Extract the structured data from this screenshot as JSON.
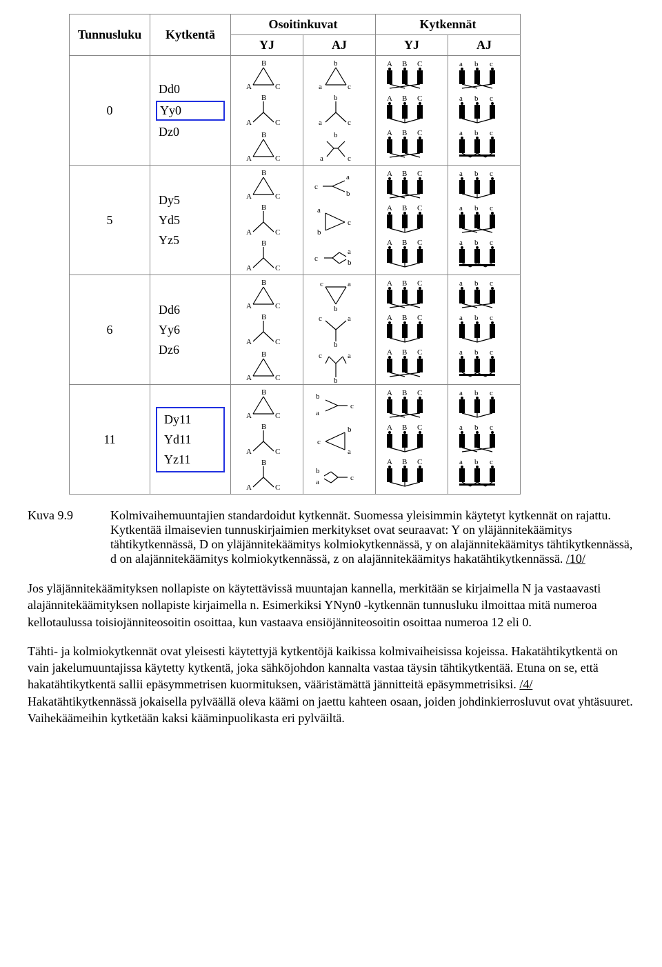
{
  "table": {
    "headers": {
      "tunnusluku": "Tunnusluku",
      "kytkenta": "Kytkentä",
      "osoitinkuvat": "Osoitinkuvat",
      "kytkennat": "Kytkennät",
      "yj": "YJ",
      "aj": "AJ"
    },
    "groups": [
      {
        "tunnus": "0",
        "rows": [
          "Dd0",
          "Yy0",
          "Dz0"
        ],
        "highlight": "single",
        "highlight_index": 1,
        "yj_shapes": [
          "tri",
          "wye",
          "tri"
        ],
        "aj_shapes": [
          "tri",
          "wye",
          "zig"
        ],
        "yj_labels_upper": true,
        "aj_labels_upper": false,
        "conn_yj": [
          "delta",
          "wye",
          "delta"
        ],
        "conn_aj": [
          "delta",
          "wye",
          "zig"
        ]
      },
      {
        "tunnus": "5",
        "rows": [
          "Dy5",
          "Yd5",
          "Yz5"
        ],
        "highlight": "none",
        "yj_shapes": [
          "tri",
          "wye",
          "wye"
        ],
        "aj_shapes": [
          "wyeR",
          "triR",
          "zigR"
        ],
        "conn_yj": [
          "delta",
          "wye",
          "wye"
        ],
        "conn_aj": [
          "wye",
          "delta",
          "zig"
        ]
      },
      {
        "tunnus": "6",
        "rows": [
          "Dd6",
          "Yy6",
          "Dz6"
        ],
        "highlight": "none",
        "yj_shapes": [
          "tri",
          "wye",
          "tri"
        ],
        "aj_shapes": [
          "triD",
          "wyeD",
          "zigD"
        ],
        "conn_yj": [
          "delta",
          "wye",
          "delta"
        ],
        "conn_aj": [
          "delta",
          "wye",
          "zig"
        ]
      },
      {
        "tunnus": "11",
        "rows": [
          "Dy11",
          "Yd11",
          "Yz11"
        ],
        "highlight": "all",
        "yj_shapes": [
          "tri",
          "wye",
          "wye"
        ],
        "aj_shapes": [
          "wyeL",
          "triL",
          "zigL"
        ],
        "conn_yj": [
          "delta",
          "wye",
          "wye"
        ],
        "conn_aj": [
          "wye",
          "delta",
          "zig"
        ]
      }
    ]
  },
  "caption": {
    "figno": "Kuva 9.9",
    "text": "Kolmivaihemuuntajien standardoidut kytkennät. Suomessa yleisimmin käytetyt kytkennät on rajattu. Kytkentää ilmaisevien tunnuskirjaimien merkitykset ovat seuraavat: Y on yläjännitekäämitys tähtikytkennässä, D on yläjännitekäämitys kolmiokytkennässä, y on alajännitekäämitys tähtikytkennässä, d on alajännitekäämitys kolmiokytkennässä, z on alajännitekäämitys hakatähtikytkennässä. ",
    "ref": "/10/"
  },
  "para1a": "Jos yläjännitekäämityksen nollapiste on käytettävissä muuntajan kannella, merkitään se kirjaimella N ja vastaavasti alajännitekäämityksen nollapiste kirjaimella n. Esimerkiksi YNyn0 -kytkennän tunnusluku ilmoittaa mitä numeroa kellotaulussa toisiojänniteosoitin osoittaa, kun vastaava ensiöjänniteosoitin osoittaa numeroa 12 eli 0.",
  "para2a": "Tähti- ja kolmiokytkennät ovat yleisesti käytettyjä kytkentöjä kaikissa kolmivaiheisissa kojeissa. Hakatähtikytkentä on vain jakelumuuntajissa käytetty kytkentä, joka sähköjohdon kannalta vastaa täysin tähtikytkentää. Etuna on se, että hakatähtikytkentä sallii epäsymmetrisen kuormituksen, vääristämättä jännitteitä epäsymmetrisiksi. ",
  "para2ref": "/4/",
  "para2b": " Hakatähtikytkennässä jokaisella pylväällä oleva käämi on jaettu kahteen osaan, joiden johdinkierrosluvut ovat yhtäsuuret. Vaihekäämeihin kytketään kaksi kääminpuolikasta eri pylväiltä.",
  "style": {
    "highlight_color": "#2030e0",
    "border_color": "#888888",
    "text_color": "#000000",
    "bg": "#ffffff",
    "font": "Times New Roman",
    "diagram_stroke": "#000000",
    "diagram_label_fontsize": 11
  }
}
